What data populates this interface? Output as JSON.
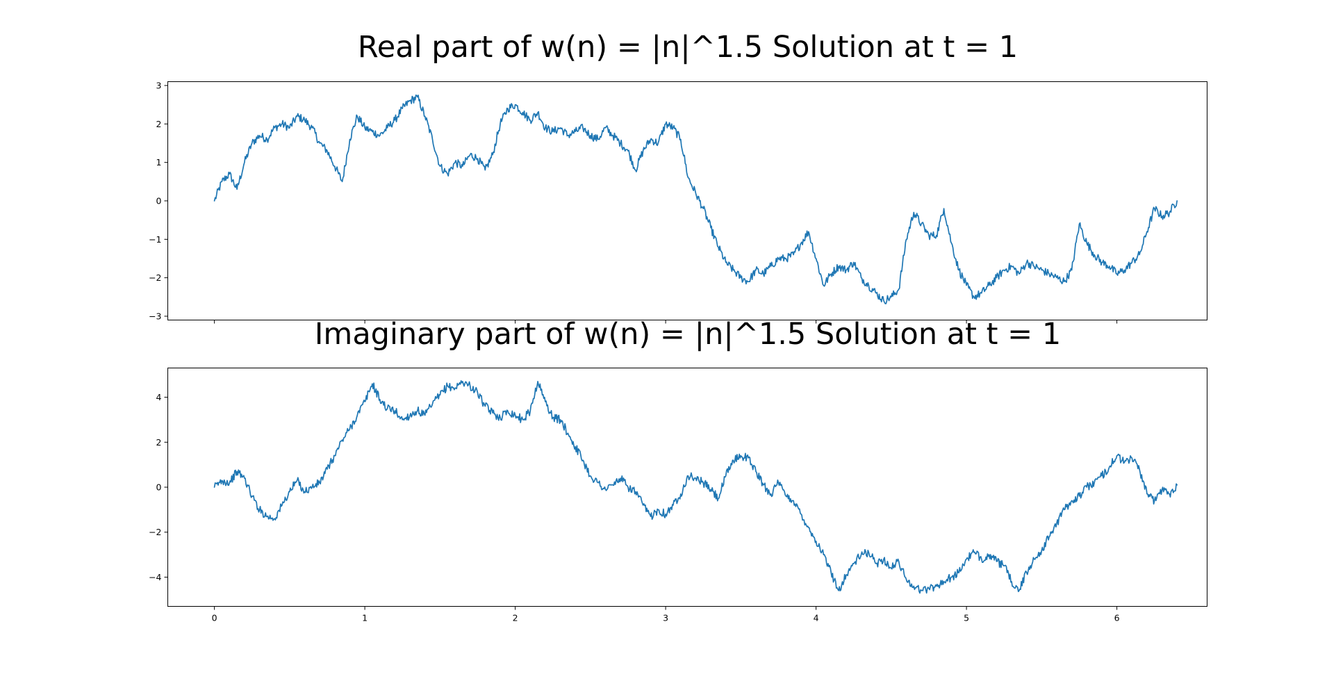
{
  "colors": {
    "series": "#1f77b4"
  },
  "chart_data": [
    {
      "type": "line",
      "title": "Real part of w(n) = |n|^1.5 Solution at t = 1",
      "xlabel": "",
      "ylabel": "",
      "xlim": [
        -0.31,
        6.6
      ],
      "ylim": [
        -3.1,
        3.1
      ],
      "xticks": [
        0,
        1,
        2,
        3,
        4,
        5,
        6
      ],
      "yticks": [
        3,
        2,
        1,
        0,
        -1,
        -2,
        -3
      ],
      "yticklabels": [
        "3",
        "2",
        "1",
        "0",
        "−1",
        "−2",
        "−3"
      ],
      "xticklabels_visible": false,
      "grid": false,
      "series": [
        {
          "points": [
            [
              0.0,
              0.0
            ],
            [
              0.05,
              0.5
            ],
            [
              0.1,
              0.7
            ],
            [
              0.15,
              0.3
            ],
            [
              0.2,
              1.0
            ],
            [
              0.25,
              1.5
            ],
            [
              0.3,
              1.7
            ],
            [
              0.35,
              1.6
            ],
            [
              0.4,
              1.9
            ],
            [
              0.45,
              2.0
            ],
            [
              0.5,
              1.9
            ],
            [
              0.55,
              2.2
            ],
            [
              0.6,
              2.1
            ],
            [
              0.65,
              1.9
            ],
            [
              0.7,
              1.5
            ],
            [
              0.75,
              1.3
            ],
            [
              0.8,
              0.9
            ],
            [
              0.85,
              0.5
            ],
            [
              0.9,
              1.6
            ],
            [
              0.95,
              2.2
            ],
            [
              1.0,
              1.9
            ],
            [
              1.05,
              1.8
            ],
            [
              1.1,
              1.7
            ],
            [
              1.15,
              1.9
            ],
            [
              1.2,
              2.1
            ],
            [
              1.25,
              2.4
            ],
            [
              1.3,
              2.6
            ],
            [
              1.35,
              2.7
            ],
            [
              1.4,
              2.2
            ],
            [
              1.45,
              1.6
            ],
            [
              1.5,
              0.9
            ],
            [
              1.55,
              0.7
            ],
            [
              1.6,
              1.0
            ],
            [
              1.65,
              0.9
            ],
            [
              1.7,
              1.2
            ],
            [
              1.75,
              1.1
            ],
            [
              1.8,
              0.8
            ],
            [
              1.85,
              1.2
            ],
            [
              1.9,
              2.0
            ],
            [
              1.95,
              2.4
            ],
            [
              2.0,
              2.5
            ],
            [
              2.05,
              2.3
            ],
            [
              2.1,
              2.1
            ],
            [
              2.15,
              2.3
            ],
            [
              2.2,
              1.9
            ],
            [
              2.25,
              1.8
            ],
            [
              2.3,
              1.9
            ],
            [
              2.35,
              1.7
            ],
            [
              2.4,
              1.8
            ],
            [
              2.45,
              1.9
            ],
            [
              2.5,
              1.7
            ],
            [
              2.55,
              1.6
            ],
            [
              2.6,
              1.9
            ],
            [
              2.65,
              1.7
            ],
            [
              2.7,
              1.5
            ],
            [
              2.75,
              1.3
            ],
            [
              2.8,
              0.8
            ],
            [
              2.85,
              1.3
            ],
            [
              2.9,
              1.6
            ],
            [
              2.95,
              1.5
            ],
            [
              3.0,
              2.0
            ],
            [
              3.05,
              1.9
            ],
            [
              3.1,
              1.6
            ],
            [
              3.15,
              0.6
            ],
            [
              3.2,
              0.2
            ],
            [
              3.25,
              -0.2
            ],
            [
              3.3,
              -0.7
            ],
            [
              3.35,
              -1.2
            ],
            [
              3.4,
              -1.6
            ],
            [
              3.45,
              -1.8
            ],
            [
              3.5,
              -2.0
            ],
            [
              3.55,
              -2.1
            ],
            [
              3.6,
              -1.8
            ],
            [
              3.65,
              -1.9
            ],
            [
              3.7,
              -1.7
            ],
            [
              3.75,
              -1.5
            ],
            [
              3.8,
              -1.5
            ],
            [
              3.85,
              -1.4
            ],
            [
              3.9,
              -1.1
            ],
            [
              3.95,
              -0.8
            ],
            [
              4.0,
              -1.5
            ],
            [
              4.05,
              -2.2
            ],
            [
              4.1,
              -1.9
            ],
            [
              4.15,
              -1.7
            ],
            [
              4.2,
              -1.8
            ],
            [
              4.25,
              -1.6
            ],
            [
              4.3,
              -2.0
            ],
            [
              4.35,
              -2.2
            ],
            [
              4.4,
              -2.4
            ],
            [
              4.45,
              -2.6
            ],
            [
              4.5,
              -2.5
            ],
            [
              4.55,
              -2.3
            ],
            [
              4.6,
              -1.0
            ],
            [
              4.65,
              -0.3
            ],
            [
              4.7,
              -0.6
            ],
            [
              4.75,
              -0.9
            ],
            [
              4.8,
              -0.9
            ],
            [
              4.85,
              -0.2
            ],
            [
              4.9,
              -1.1
            ],
            [
              4.95,
              -1.8
            ],
            [
              5.0,
              -2.2
            ],
            [
              5.05,
              -2.5
            ],
            [
              5.1,
              -2.4
            ],
            [
              5.15,
              -2.2
            ],
            [
              5.2,
              -2.0
            ],
            [
              5.25,
              -1.8
            ],
            [
              5.3,
              -1.7
            ],
            [
              5.35,
              -1.9
            ],
            [
              5.4,
              -1.6
            ],
            [
              5.45,
              -1.7
            ],
            [
              5.5,
              -1.8
            ],
            [
              5.55,
              -1.9
            ],
            [
              5.6,
              -2.0
            ],
            [
              5.65,
              -2.1
            ],
            [
              5.7,
              -1.8
            ],
            [
              5.75,
              -0.6
            ],
            [
              5.8,
              -1.1
            ],
            [
              5.85,
              -1.4
            ],
            [
              5.9,
              -1.6
            ],
            [
              5.95,
              -1.7
            ],
            [
              6.0,
              -1.9
            ],
            [
              6.05,
              -1.8
            ],
            [
              6.1,
              -1.6
            ],
            [
              6.15,
              -1.4
            ],
            [
              6.2,
              -0.8
            ],
            [
              6.25,
              -0.2
            ],
            [
              6.3,
              -0.4
            ],
            [
              6.35,
              -0.3
            ],
            [
              6.4,
              0.0
            ]
          ]
        }
      ]
    },
    {
      "type": "line",
      "title": "Imaginary part of w(n) = |n|^1.5 Solution at t = 1",
      "xlabel": "",
      "ylabel": "",
      "xlim": [
        -0.31,
        6.6
      ],
      "ylim": [
        -5.3,
        5.3
      ],
      "xticks": [
        0,
        1,
        2,
        3,
        4,
        5,
        6
      ],
      "xticklabels": [
        "0",
        "1",
        "2",
        "3",
        "4",
        "5",
        "6"
      ],
      "yticks": [
        4,
        2,
        0,
        -2,
        -4
      ],
      "yticklabels": [
        "4",
        "2",
        "0",
        "−2",
        "−4"
      ],
      "grid": false,
      "series": [
        {
          "points": [
            [
              0.0,
              0.0
            ],
            [
              0.05,
              0.3
            ],
            [
              0.1,
              0.2
            ],
            [
              0.15,
              0.7
            ],
            [
              0.2,
              0.4
            ],
            [
              0.25,
              -0.4
            ],
            [
              0.3,
              -1.0
            ],
            [
              0.35,
              -1.3
            ],
            [
              0.4,
              -1.4
            ],
            [
              0.45,
              -0.8
            ],
            [
              0.5,
              -0.2
            ],
            [
              0.55,
              0.3
            ],
            [
              0.6,
              -0.2
            ],
            [
              0.65,
              0.0
            ],
            [
              0.7,
              0.2
            ],
            [
              0.75,
              0.8
            ],
            [
              0.8,
              1.4
            ],
            [
              0.85,
              2.1
            ],
            [
              0.9,
              2.6
            ],
            [
              0.95,
              3.2
            ],
            [
              1.0,
              3.8
            ],
            [
              1.05,
              4.6
            ],
            [
              1.1,
              3.9
            ],
            [
              1.15,
              3.5
            ],
            [
              1.2,
              3.4
            ],
            [
              1.25,
              3.0
            ],
            [
              1.3,
              3.2
            ],
            [
              1.35,
              3.4
            ],
            [
              1.4,
              3.2
            ],
            [
              1.45,
              3.7
            ],
            [
              1.5,
              4.1
            ],
            [
              1.55,
              4.5
            ],
            [
              1.6,
              4.4
            ],
            [
              1.65,
              4.7
            ],
            [
              1.7,
              4.5
            ],
            [
              1.75,
              4.2
            ],
            [
              1.8,
              3.6
            ],
            [
              1.85,
              3.3
            ],
            [
              1.9,
              3.1
            ],
            [
              1.95,
              3.4
            ],
            [
              2.0,
              3.2
            ],
            [
              2.05,
              3.0
            ],
            [
              2.1,
              3.4
            ],
            [
              2.15,
              4.7
            ],
            [
              2.2,
              3.8
            ],
            [
              2.25,
              3.1
            ],
            [
              2.3,
              3.0
            ],
            [
              2.35,
              2.4
            ],
            [
              2.4,
              1.8
            ],
            [
              2.45,
              1.2
            ],
            [
              2.5,
              0.5
            ],
            [
              2.55,
              0.2
            ],
            [
              2.6,
              -0.1
            ],
            [
              2.65,
              0.1
            ],
            [
              2.7,
              0.4
            ],
            [
              2.75,
              0.0
            ],
            [
              2.8,
              -0.2
            ],
            [
              2.85,
              -0.8
            ],
            [
              2.9,
              -1.3
            ],
            [
              2.95,
              -1.0
            ],
            [
              3.0,
              -1.2
            ],
            [
              3.05,
              -0.8
            ],
            [
              3.1,
              -0.3
            ],
            [
              3.15,
              0.5
            ],
            [
              3.2,
              0.4
            ],
            [
              3.25,
              0.2
            ],
            [
              3.3,
              -0.1
            ],
            [
              3.35,
              -0.5
            ],
            [
              3.4,
              0.5
            ],
            [
              3.45,
              1.2
            ],
            [
              3.5,
              1.4
            ],
            [
              3.55,
              1.3
            ],
            [
              3.6,
              0.7
            ],
            [
              3.65,
              0.1
            ],
            [
              3.7,
              -0.3
            ],
            [
              3.75,
              0.2
            ],
            [
              3.8,
              -0.4
            ],
            [
              3.85,
              -0.6
            ],
            [
              3.9,
              -1.2
            ],
            [
              3.95,
              -1.8
            ],
            [
              4.0,
              -2.4
            ],
            [
              4.05,
              -3.0
            ],
            [
              4.1,
              -3.8
            ],
            [
              4.15,
              -4.6
            ],
            [
              4.2,
              -3.9
            ],
            [
              4.25,
              -3.4
            ],
            [
              4.3,
              -3.0
            ],
            [
              4.35,
              -2.9
            ],
            [
              4.4,
              -3.4
            ],
            [
              4.45,
              -3.2
            ],
            [
              4.5,
              -3.6
            ],
            [
              4.55,
              -3.3
            ],
            [
              4.6,
              -4.1
            ],
            [
              4.65,
              -4.4
            ],
            [
              4.7,
              -4.6
            ],
            [
              4.75,
              -4.5
            ],
            [
              4.8,
              -4.4
            ],
            [
              4.85,
              -4.2
            ],
            [
              4.9,
              -4.0
            ],
            [
              4.95,
              -3.8
            ],
            [
              5.0,
              -3.2
            ],
            [
              5.05,
              -2.9
            ],
            [
              5.1,
              -3.2
            ],
            [
              5.15,
              -3.0
            ],
            [
              5.2,
              -3.3
            ],
            [
              5.25,
              -3.5
            ],
            [
              5.3,
              -4.2
            ],
            [
              5.35,
              -4.6
            ],
            [
              5.4,
              -3.8
            ],
            [
              5.45,
              -3.2
            ],
            [
              5.5,
              -2.8
            ],
            [
              5.55,
              -2.2
            ],
            [
              5.6,
              -1.6
            ],
            [
              5.65,
              -1.0
            ],
            [
              5.7,
              -0.6
            ],
            [
              5.75,
              -0.4
            ],
            [
              5.8,
              0.0
            ],
            [
              5.85,
              0.2
            ],
            [
              5.9,
              0.5
            ],
            [
              5.95,
              0.9
            ],
            [
              6.0,
              1.4
            ],
            [
              6.05,
              1.1
            ],
            [
              6.1,
              1.3
            ],
            [
              6.15,
              0.8
            ],
            [
              6.2,
              -0.3
            ],
            [
              6.25,
              -0.6
            ],
            [
              6.3,
              -0.1
            ],
            [
              6.35,
              -0.3
            ],
            [
              6.4,
              0.1
            ]
          ]
        }
      ]
    }
  ]
}
